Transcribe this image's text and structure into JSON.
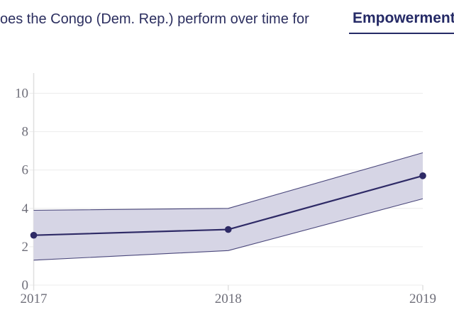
{
  "title": {
    "prefix": "oes the Congo (Dem. Rep.) perform over time for",
    "metric": "Empowerment"
  },
  "colors": {
    "title": "#2b2e5f",
    "metric": "#252a66",
    "line": "#2e2a66",
    "band_fill": "#d6d5e5",
    "grid": "#ececec",
    "axis": "#e0e0e0",
    "tick_label": "#6e6e79"
  },
  "chart_data": {
    "type": "line",
    "title": "oes the Congo (Dem. Rep.) perform over time for Empowerment",
    "x": [
      2017,
      2018,
      2019
    ],
    "xticks": [
      "2017",
      "2018",
      "2019"
    ],
    "series": [
      {
        "name": "Empowerment",
        "values": [
          2.6,
          2.9,
          5.7
        ],
        "ci_upper": [
          3.9,
          4.0,
          6.9
        ],
        "ci_lower": [
          1.3,
          1.8,
          4.5
        ]
      }
    ],
    "xlabel": "",
    "ylabel": "",
    "ylim": [
      0,
      11
    ],
    "yticks": [
      0,
      2,
      4,
      6,
      8,
      10
    ],
    "grid": true,
    "band": "confidence-interval",
    "legend": false
  }
}
